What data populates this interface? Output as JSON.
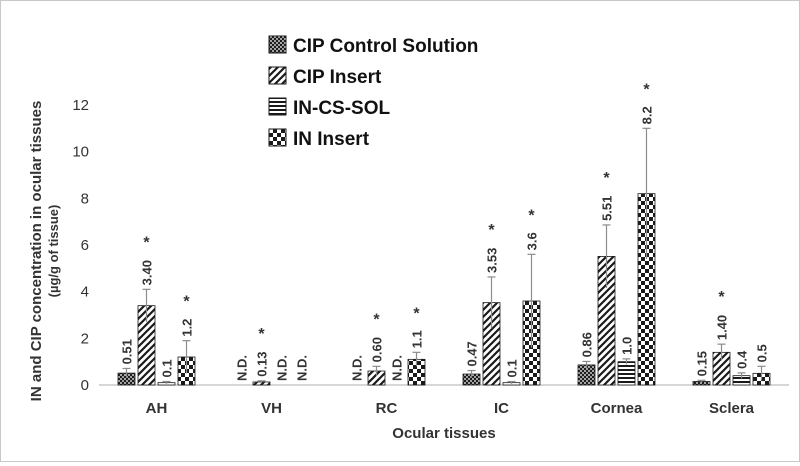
{
  "colors": {
    "ink": "#333333",
    "axis": "#bfbfbf",
    "errorbar": "#8c8c8c",
    "fill": "#222222"
  },
  "chart_data": {
    "type": "bar",
    "title": "",
    "xlabel": "Ocular tissues",
    "ylabel": "IN and CIP concentration in ocular tissues",
    "ylabel_unit": "(µg/g of tissue)",
    "ylim": [
      0,
      12
    ],
    "yticks": [
      "0",
      "2",
      "4",
      "6",
      "8",
      "10",
      "12"
    ],
    "grid": false,
    "legend_position": "top-center",
    "categories": [
      "AH",
      "VH",
      "RC",
      "IC",
      "Cornea",
      "Sclera"
    ],
    "significance_marker": "*",
    "series": [
      {
        "name": "CIP Control Solution",
        "pattern": "dense-crosshatch",
        "values": [
          0.51,
          0,
          0,
          0.47,
          0.86,
          0.15
        ],
        "errors": [
          0.2,
          0,
          0,
          0.15,
          0.15,
          0.05
        ],
        "labels": [
          "0.51",
          "N.D.",
          "N.D.",
          "0.47",
          "0.86",
          "0.15"
        ],
        "significant": [
          false,
          false,
          false,
          false,
          false,
          false
        ]
      },
      {
        "name": "CIP Insert",
        "pattern": "diagonal",
        "values": [
          3.4,
          0.13,
          0.6,
          3.53,
          5.51,
          1.4
        ],
        "errors": [
          0.7,
          0.05,
          0.2,
          1.1,
          1.35,
          0.35
        ],
        "labels": [
          "3.40",
          "0.13",
          "0.60",
          "3.53",
          "5.51",
          "1.40"
        ],
        "significant": [
          true,
          true,
          true,
          true,
          true,
          true
        ]
      },
      {
        "name": "IN-CS-SOL",
        "pattern": "horizontal",
        "values": [
          0.1,
          0,
          0,
          0.1,
          1.0,
          0.4
        ],
        "errors": [
          0.05,
          0,
          0,
          0.05,
          0.12,
          0.12
        ],
        "labels": [
          "0.1",
          "N.D.",
          "N.D.",
          "0.1",
          "1.0",
          "0.4"
        ],
        "significant": [
          false,
          false,
          false,
          false,
          false,
          false
        ]
      },
      {
        "name": "IN Insert",
        "pattern": "checkerboard",
        "values": [
          1.2,
          0,
          1.1,
          3.6,
          8.2,
          0.5
        ],
        "errors": [
          0.7,
          0,
          0.3,
          2.0,
          2.8,
          0.3
        ],
        "labels": [
          "1.2",
          "N.D.",
          "1.1",
          "3.6",
          "8.2",
          "0.5"
        ],
        "significant": [
          true,
          false,
          true,
          true,
          true,
          false
        ]
      }
    ]
  }
}
